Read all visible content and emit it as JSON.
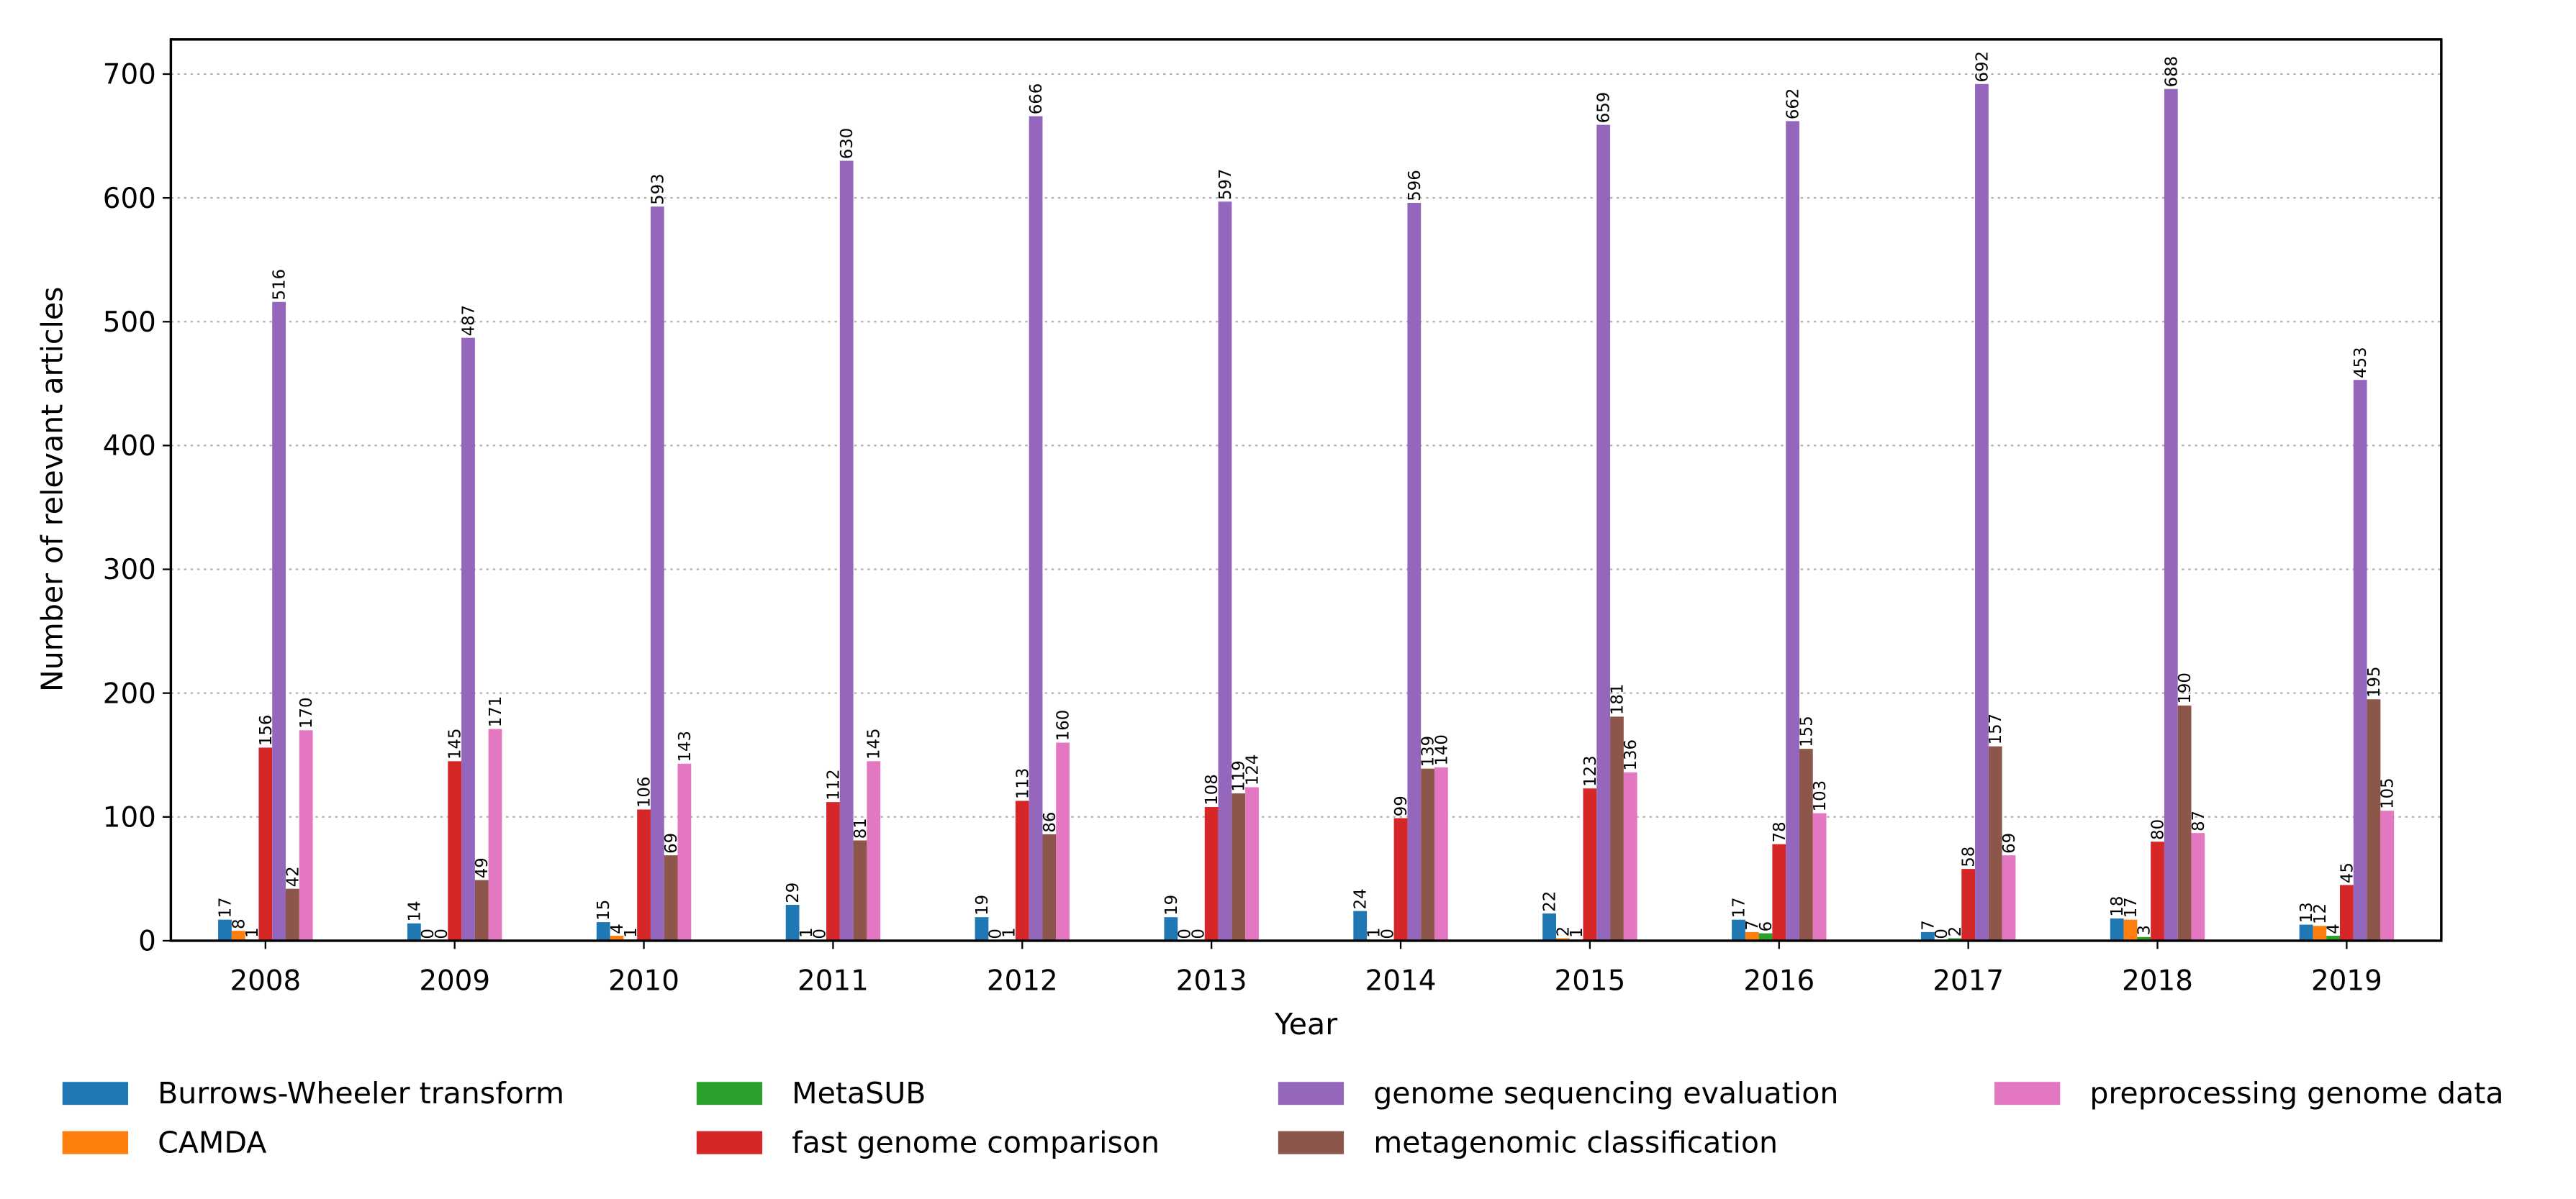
{
  "chart_data": {
    "type": "bar",
    "x_label": "Year",
    "y_label": "Number of relevant articles",
    "categories": [
      "2008",
      "2009",
      "2010",
      "2011",
      "2012",
      "2013",
      "2014",
      "2015",
      "2016",
      "2017",
      "2018",
      "2019"
    ],
    "series": [
      {
        "name": "Burrows-Wheeler transform",
        "color": "#1f77b4",
        "values": [
          17,
          14,
          15,
          29,
          19,
          19,
          24,
          22,
          17,
          7,
          18,
          13
        ]
      },
      {
        "name": "CAMDA",
        "color": "#ff7f0e",
        "values": [
          8,
          0,
          4,
          1,
          0,
          0,
          1,
          2,
          7,
          0,
          17,
          12
        ]
      },
      {
        "name": "MetaSUB",
        "color": "#2ca02c",
        "values": [
          1,
          0,
          1,
          0,
          1,
          0,
          0,
          1,
          6,
          2,
          3,
          4
        ]
      },
      {
        "name": "fast genome comparison",
        "color": "#d62728",
        "values": [
          156,
          145,
          106,
          112,
          113,
          108,
          99,
          123,
          78,
          58,
          80,
          45
        ]
      },
      {
        "name": "genome sequencing evaluation",
        "color": "#9467bd",
        "values": [
          516,
          487,
          593,
          630,
          666,
          597,
          596,
          659,
          662,
          692,
          688,
          453
        ]
      },
      {
        "name": "metagenomic classification",
        "color": "#8c564b",
        "values": [
          42,
          49,
          69,
          81,
          86,
          119,
          139,
          181,
          155,
          157,
          190,
          195
        ]
      },
      {
        "name": "preprocessing genome data",
        "color": "#e377c2",
        "values": [
          170,
          171,
          143,
          145,
          160,
          124,
          140,
          136,
          103,
          69,
          87,
          105
        ]
      }
    ],
    "ylim": [
      0,
      728
    ],
    "yticks": [
      0,
      100,
      200,
      300,
      400,
      500,
      600,
      700
    ],
    "grid": true,
    "legend": "bottom"
  }
}
